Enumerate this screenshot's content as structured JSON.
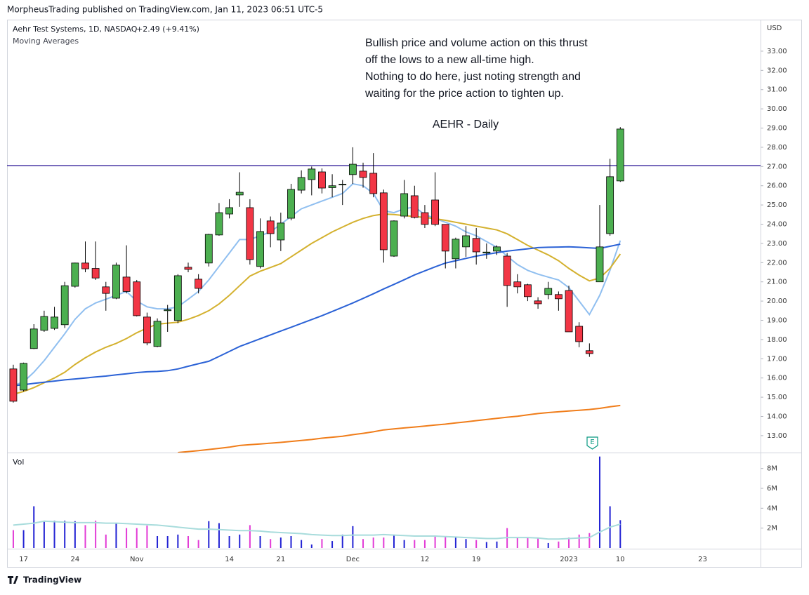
{
  "header": {
    "publisher": "MorpheusTrading published on TradingView.com, Jan 11, 2023 06:51 UTC-5"
  },
  "footer": {
    "brand": "TradingView"
  },
  "chart_data": {
    "type": "candlestick",
    "symbol": "Aehr Test Systems, 1D, NASDAQ",
    "change": "+2.49 (+9.41%)",
    "indicator_label": "Moving Averages",
    "annotation": [
      "Bullish price and volume action on this thrust",
      "off the lows to a new all-time high.",
      "Nothing to do here, just noting strength and",
      "waiting for the price action to tighten up."
    ],
    "title": "AEHR - Daily",
    "currency": "USD",
    "earnings_label": "E",
    "up_color": "#4caf50",
    "down_color": "#f23645",
    "categories": [
      null,
      "17",
      null,
      null,
      null,
      null,
      "24",
      null,
      null,
      null,
      null,
      null,
      "Nov",
      null,
      null,
      null,
      null,
      null,
      null,
      null,
      null,
      "14",
      null,
      null,
      null,
      null,
      "21",
      null,
      null,
      null,
      null,
      null,
      null,
      "Dec",
      null,
      null,
      null,
      null,
      null,
      null,
      "12",
      null,
      null,
      null,
      null,
      "19",
      null,
      null,
      null,
      null,
      null,
      null,
      null,
      null,
      "2023",
      null,
      null,
      null,
      null,
      "10",
      null,
      null,
      null,
      null,
      null,
      null,
      null,
      "23"
    ],
    "open": [
      16.47,
      15.37,
      17.53,
      18.48,
      18.58,
      18.77,
      20.77,
      21.98,
      21.7,
      20.74,
      20.15,
      21.25,
      21.0,
      19.17,
      17.64,
      19.5,
      18.99,
      21.76,
      21.14,
      21.98,
      23.44,
      24.53,
      25.52,
      24.86,
      21.8,
      24.17,
      23.18,
      24.31,
      25.77,
      26.32,
      26.72,
      25.9,
      26.06,
      26.58,
      26.76,
      26.65,
      25.63,
      22.34,
      24.42,
      25.48,
      24.6,
      25.26,
      23.99,
      22.2,
      22.82,
      23.26,
      22.5,
      22.6,
      22.34,
      21.0,
      20.85,
      20.01,
      20.34,
      20.34,
      20.55,
      18.69,
      17.42,
      21.0,
      23.51,
      26.25,
      null,
      null,
      null,
      null,
      null,
      null,
      null,
      null
    ],
    "high": [
      16.69,
      16.8,
      18.8,
      19.5,
      19.7,
      21.0,
      22.0,
      23.1,
      23.1,
      21.0,
      22.0,
      22.9,
      21.1,
      19.4,
      19.1,
      19.8,
      21.4,
      22.0,
      21.4,
      23.5,
      25.1,
      25.3,
      26.7,
      25.3,
      24.3,
      24.4,
      24.6,
      26.1,
      26.8,
      27.0,
      26.9,
      26.6,
      26.3,
      28.0,
      27.2,
      27.7,
      25.8,
      24.2,
      26.3,
      26.0,
      25.0,
      26.7,
      24.0,
      23.3,
      23.9,
      23.8,
      23.0,
      22.9,
      22.5,
      21.4,
      20.9,
      20.2,
      21.0,
      20.5,
      20.8,
      18.9,
      17.8,
      25.0,
      27.4,
      29.05,
      null,
      null,
      null,
      null,
      null,
      null,
      null,
      null
    ],
    "low": [
      14.72,
      15.3,
      17.5,
      18.4,
      18.5,
      18.6,
      20.7,
      21.5,
      21.1,
      19.5,
      20.1,
      20.4,
      19.2,
      17.7,
      17.6,
      18.4,
      18.85,
      21.5,
      20.4,
      21.8,
      23.4,
      24.3,
      24.9,
      21.9,
      21.7,
      22.8,
      22.6,
      24.2,
      25.6,
      25.5,
      25.6,
      25.4,
      25.0,
      26.1,
      25.9,
      25.4,
      22.0,
      22.3,
      24.3,
      24.3,
      23.8,
      23.9,
      21.7,
      21.7,
      22.3,
      21.9,
      22.2,
      22.4,
      19.7,
      20.4,
      20.0,
      19.6,
      20.1,
      19.5,
      18.4,
      17.6,
      17.1,
      21.0,
      23.4,
      26.2,
      null,
      null,
      null,
      null,
      null,
      null,
      null,
      null
    ],
    "close": [
      14.79,
      16.76,
      18.55,
      19.2,
      19.17,
      20.8,
      21.98,
      21.68,
      21.2,
      20.4,
      21.87,
      20.5,
      19.24,
      17.82,
      18.95,
      19.55,
      21.32,
      21.65,
      20.66,
      23.47,
      24.6,
      24.86,
      25.66,
      22.16,
      23.62,
      23.51,
      24.06,
      25.81,
      26.43,
      26.87,
      25.88,
      26.0,
      26.08,
      27.12,
      26.43,
      25.59,
      22.67,
      24.17,
      25.59,
      24.35,
      23.99,
      23.99,
      22.6,
      23.22,
      23.4,
      22.56,
      22.55,
      22.82,
      20.81,
      20.74,
      20.23,
      19.86,
      20.66,
      20.12,
      18.4,
      17.89,
      17.27,
      22.82,
      26.47,
      28.95,
      null,
      null,
      null,
      null,
      null,
      null,
      null,
      null
    ],
    "ylim": [
      12.12,
      34.64
    ],
    "yticks": [
      {
        "value": 13,
        "label": "13.00"
      },
      {
        "value": 14,
        "label": "14.00"
      },
      {
        "value": 15,
        "label": "15.00"
      },
      {
        "value": 16,
        "label": "16.00"
      },
      {
        "value": 17,
        "label": "17.00"
      },
      {
        "value": 18,
        "label": "18.00"
      },
      {
        "value": 19,
        "label": "19.00"
      },
      {
        "value": 20,
        "label": "20.00"
      },
      {
        "value": 21,
        "label": "21.00"
      },
      {
        "value": 22,
        "label": "22.00"
      },
      {
        "value": 23,
        "label": "23.00"
      },
      {
        "value": 24,
        "label": "24.00"
      },
      {
        "value": 25,
        "label": "25.00"
      },
      {
        "value": 26,
        "label": "26.00"
      },
      {
        "value": 27,
        "label": "27.00"
      },
      {
        "value": 28,
        "label": "28.00"
      },
      {
        "value": 29,
        "label": "29.00"
      },
      {
        "value": 30,
        "label": "30.00"
      },
      {
        "value": 31,
        "label": "31.00"
      },
      {
        "value": 32,
        "label": "32.00"
      },
      {
        "value": 33,
        "label": "33.00"
      }
    ],
    "hline": {
      "value": 27.05,
      "color": "#4b3aa5"
    },
    "moving_averages": [
      {
        "color": "#90bff0",
        "values": [
          15.6,
          15.8,
          16.3,
          16.9,
          17.6,
          18.3,
          19.05,
          19.6,
          19.9,
          20.1,
          20.3,
          20.5,
          20.0,
          19.7,
          19.6,
          19.6,
          19.7,
          20.1,
          20.5,
          21.1,
          21.8,
          22.5,
          23.2,
          23.2,
          23.4,
          23.6,
          24.0,
          24.4,
          24.8,
          25.0,
          25.2,
          25.4,
          25.6,
          26.1,
          26.0,
          25.6,
          24.7,
          24.6,
          24.8,
          24.9,
          24.5,
          24.3,
          24.1,
          23.9,
          23.6,
          23.4,
          23.1,
          22.8,
          22.34,
          21.9,
          21.6,
          21.4,
          21.25,
          21.1,
          20.7,
          20.0,
          19.3,
          20.3,
          21.6,
          23.15,
          null,
          null,
          null,
          null,
          null,
          null,
          null,
          null
        ]
      },
      {
        "color": "#d4b12f",
        "values": [
          15.15,
          15.3,
          15.5,
          15.75,
          16.0,
          16.3,
          16.7,
          17.05,
          17.35,
          17.6,
          17.8,
          18.05,
          18.35,
          18.6,
          18.8,
          18.85,
          18.9,
          19.05,
          19.25,
          19.5,
          19.85,
          20.3,
          20.8,
          21.3,
          21.55,
          21.75,
          21.95,
          22.3,
          22.65,
          23.0,
          23.3,
          23.6,
          23.85,
          24.1,
          24.3,
          24.45,
          24.53,
          24.5,
          24.45,
          24.4,
          24.35,
          24.28,
          24.2,
          24.1,
          24.0,
          23.9,
          23.8,
          23.7,
          23.5,
          23.2,
          22.9,
          22.65,
          22.4,
          22.1,
          21.7,
          21.35,
          21.05,
          21.2,
          21.7,
          22.45,
          null,
          null,
          null,
          null,
          null,
          null,
          null,
          null
        ]
      },
      {
        "color": "#2b62d6",
        "values": [
          15.6,
          15.65,
          15.72,
          15.78,
          15.84,
          15.9,
          15.95,
          16.0,
          16.05,
          16.1,
          16.16,
          16.22,
          16.28,
          16.32,
          16.34,
          16.38,
          16.47,
          16.61,
          16.74,
          16.87,
          17.12,
          17.38,
          17.64,
          17.84,
          18.04,
          18.24,
          18.44,
          18.64,
          18.84,
          19.04,
          19.24,
          19.46,
          19.68,
          19.9,
          20.14,
          20.38,
          20.63,
          20.87,
          21.11,
          21.36,
          21.57,
          21.78,
          21.98,
          22.1,
          22.22,
          22.34,
          22.43,
          22.52,
          22.6,
          22.66,
          22.72,
          22.78,
          22.8,
          22.81,
          22.82,
          22.8,
          22.77,
          22.74,
          22.85,
          22.96,
          null,
          null,
          null,
          null,
          null,
          null,
          null,
          null
        ]
      },
      {
        "color": "#f07d1a",
        "values": [
          null,
          null,
          null,
          null,
          null,
          null,
          null,
          null,
          null,
          null,
          null,
          null,
          null,
          null,
          null,
          null,
          12.12,
          12.17,
          12.22,
          12.28,
          12.34,
          12.4,
          12.49,
          12.53,
          12.57,
          12.61,
          12.65,
          12.7,
          12.75,
          12.8,
          12.87,
          12.92,
          12.97,
          13.05,
          13.12,
          13.2,
          13.3,
          13.35,
          13.4,
          13.45,
          13.5,
          13.55,
          13.6,
          13.66,
          13.72,
          13.78,
          13.84,
          13.9,
          13.96,
          14.01,
          14.08,
          14.15,
          14.2,
          14.24,
          14.28,
          14.32,
          14.36,
          14.42,
          14.5,
          14.57,
          null,
          null,
          null,
          null,
          null,
          null,
          null,
          null
        ]
      }
    ],
    "volume": {
      "label": "Vol",
      "up_color": "#2323d4",
      "down_color": "#e23bd6",
      "ma_color": "#a8dcdc",
      "values": [
        1.8,
        1.8,
        4.2,
        2.75,
        2.75,
        2.75,
        2.7,
        2.3,
        2.75,
        1.35,
        2.5,
        2.0,
        2.0,
        2.25,
        1.2,
        1.2,
        1.35,
        1.2,
        0.8,
        2.7,
        2.5,
        1.2,
        1.35,
        2.3,
        1.2,
        0.9,
        1.05,
        1.2,
        0.8,
        0.35,
        0.9,
        0.7,
        1.35,
        2.2,
        0.9,
        1.05,
        1.05,
        1.35,
        0.8,
        0.8,
        0.8,
        1.2,
        1.2,
        1.05,
        0.9,
        0.8,
        0.6,
        0.65,
        2.0,
        1.05,
        1.05,
        1.05,
        0.5,
        0.65,
        1.05,
        1.35,
        1.5,
        9.2,
        4.2,
        2.8,
        null,
        null,
        null,
        null,
        null,
        null,
        null,
        null
      ],
      "ma_values": [
        2.3,
        2.4,
        2.5,
        2.7,
        2.65,
        2.6,
        2.55,
        2.55,
        2.55,
        2.5,
        2.5,
        2.45,
        2.4,
        2.35,
        2.3,
        2.2,
        2.1,
        2.0,
        1.9,
        1.9,
        1.85,
        1.8,
        1.75,
        1.75,
        1.7,
        1.6,
        1.55,
        1.5,
        1.45,
        1.35,
        1.3,
        1.25,
        1.25,
        1.3,
        1.3,
        1.3,
        1.35,
        1.3,
        1.25,
        1.2,
        1.2,
        1.2,
        1.15,
        1.1,
        1.05,
        1.0,
        0.95,
        0.95,
        1.05,
        1.05,
        1.05,
        1.0,
        0.9,
        0.9,
        0.95,
        1.0,
        1.05,
        1.6,
        2.1,
        2.4,
        null,
        null,
        null,
        null,
        null,
        null,
        null,
        null
      ],
      "ylim": [
        0,
        9.6
      ],
      "yticks": [
        {
          "value": 2,
          "label": "2M"
        },
        {
          "value": 4,
          "label": "4M"
        },
        {
          "value": 6,
          "label": "6M"
        },
        {
          "value": 8,
          "label": "8M"
        }
      ]
    }
  }
}
